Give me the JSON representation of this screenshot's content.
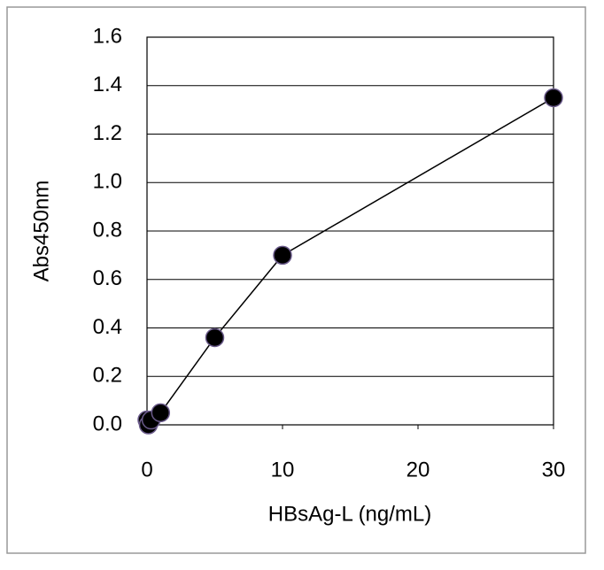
{
  "chart_data": {
    "type": "line",
    "x": [
      0,
      0.1,
      0.3,
      1,
      5,
      10,
      30
    ],
    "series": [
      {
        "name": "HBsAg-L",
        "color": "#000000",
        "values": [
          0.02,
          0.0,
          0.02,
          0.05,
          0.36,
          0.7,
          1.35
        ]
      }
    ],
    "x_label": "HBsAg-L (ng/mL)",
    "y_label": "Abs450nm",
    "xlim": [
      0,
      30
    ],
    "xticks": [
      0,
      10,
      20,
      30
    ],
    "ylim": [
      0,
      1.6
    ],
    "yticks": [
      {
        "value": 0,
        "label": "0.0"
      },
      0.2,
      0.4,
      0.6,
      0.8,
      {
        "value": 1,
        "label": "1.0"
      },
      1.2,
      1.4,
      1.6
    ],
    "grid": true
  }
}
